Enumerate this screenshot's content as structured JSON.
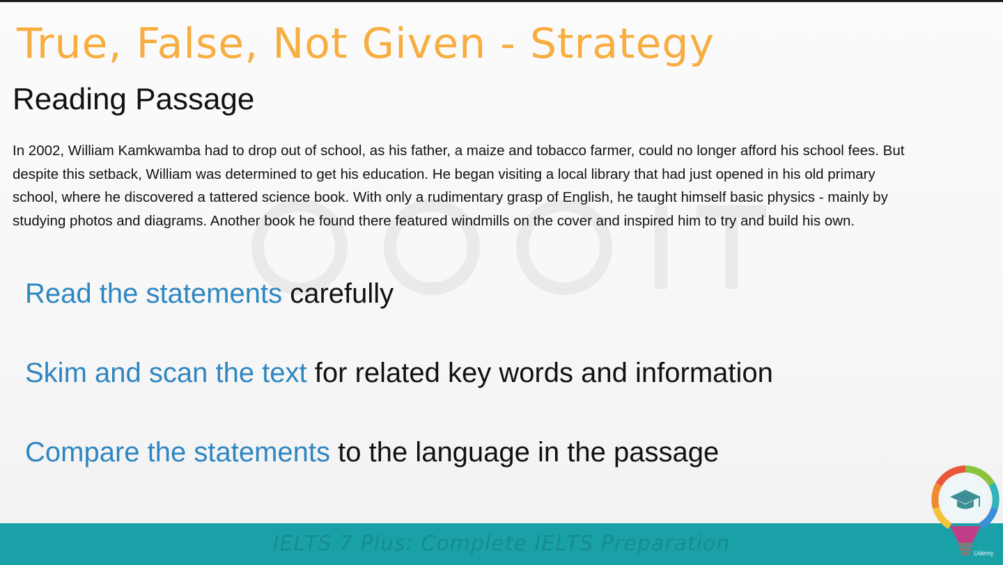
{
  "slide": {
    "title": "True, False, Not Given - Strategy",
    "section_heading": "Reading Passage",
    "passage": "In 2002, William Kamkwamba had to drop out of school, as his father, a maize and tobacco farmer, could no longer afford his school fees. But despite this setback, William was determined to get his education. He began visiting a local library that had just opened in his old primary school, where he discovered a tattered science book. With only a rudimentary grasp of English, he taught himself basic physics - mainly by studying photos and diagrams. Another book he found there featured windmills on the cover and inspired him to try and build his own.",
    "strategies": [
      {
        "highlight": "Read the statements",
        "rest": " carefully"
      },
      {
        "highlight": "Skim and scan the text",
        "rest": " for related key words and information"
      },
      {
        "highlight": "Compare the statements",
        "rest": " to the language in the passage"
      }
    ]
  },
  "footer": {
    "course_title": "IELTS 7 Plus: Complete IELTS Preparation"
  },
  "logo": {
    "icon": "lightbulb-graduation-cap-icon",
    "caption": "Udemy"
  },
  "colors": {
    "title": "#f7ad3f",
    "highlight": "#2e86c1",
    "footer": "#1aa1a8"
  }
}
